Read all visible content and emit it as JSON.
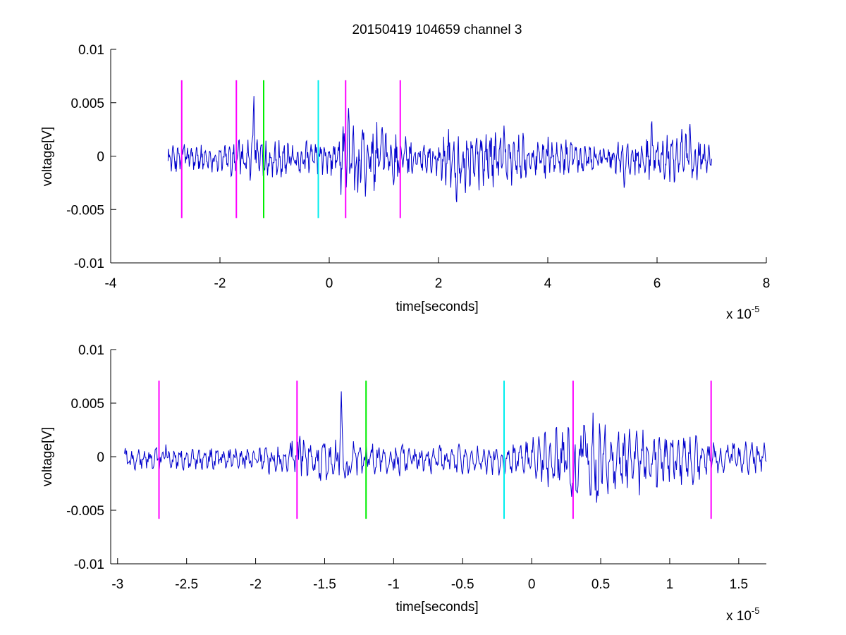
{
  "figure": {
    "title": "20150419 104659 channel 3"
  },
  "colors": {
    "signal": "#0000cc",
    "magenta": "#ff00ff",
    "green": "#00ee00",
    "cyan": "#00eeee",
    "axes": "#000000"
  },
  "chart_data": [
    {
      "type": "line",
      "title": "20150419 104659 channel 3",
      "xlabel": "time[seconds]",
      "ylabel": "voltage[V]",
      "x_multiplier": "x 10",
      "x_multiplier_exp": "-5",
      "xlim": [
        -4e-05,
        8e-05
      ],
      "ylim": [
        -0.01,
        0.01
      ],
      "xticks": [
        -4e-05,
        -2e-05,
        0,
        2e-05,
        4e-05,
        6e-05,
        8e-05
      ],
      "xtick_labels": [
        "-4",
        "-2",
        "0",
        "2",
        "4",
        "6",
        "8"
      ],
      "yticks": [
        0.01,
        0.005,
        0,
        -0.005,
        -0.01
      ],
      "ytick_labels": [
        "0.01",
        "0.005",
        "0",
        "-0.005",
        "-0.01"
      ],
      "grid": false,
      "series": [
        {
          "x_range": [
            -2.95e-05,
            7e-05
          ],
          "envelope": [
            [
              -2.95e-05,
              0.0012
            ],
            [
              -2e-05,
              0.0012
            ],
            [
              -1.5e-05,
              0.002
            ],
            [
              -1.2e-05,
              0.0018
            ],
            [
              -3e-06,
              0.0015
            ],
            [
              0.0,
              0.0015
            ],
            [
              2e-06,
              0.0032
            ],
            [
              4e-06,
              0.0038
            ],
            [
              1e-05,
              0.0028
            ],
            [
              1.3e-05,
              0.002
            ],
            [
              1.8e-05,
              0.0012
            ],
            [
              2.2e-05,
              0.0025
            ],
            [
              2.5e-05,
              0.003
            ],
            [
              3e-05,
              0.0025
            ],
            [
              4e-05,
              0.0018
            ],
            [
              5e-05,
              0.0012
            ],
            [
              5.8e-05,
              0.0018
            ],
            [
              6.5e-05,
              0.0025
            ],
            [
              7e-05,
              0.0012
            ]
          ],
          "spikes": [
            [
              -2.65e-05,
              0.0012
            ],
            [
              -1.65e-05,
              0.002
            ],
            [
              -1.38e-05,
              0.0064
            ],
            [
              3.5e-06,
              0.0046
            ],
            [
              5.2e-06,
              -0.004
            ],
            [
              2.33e-05,
              -0.0052
            ],
            [
              3.2e-05,
              0.003
            ],
            [
              5.9e-05,
              0.0037
            ],
            [
              6.6e-05,
              0.0033
            ],
            [
              5.4e-05,
              -0.0032
            ]
          ]
        }
      ],
      "markers": [
        {
          "x": -2.7e-05,
          "color": "magenta",
          "y": [
            -0.0058,
            0.0071
          ]
        },
        {
          "x": -1.7e-05,
          "color": "magenta",
          "y": [
            -0.0058,
            0.0071
          ]
        },
        {
          "x": -1.2e-05,
          "color": "green",
          "y": [
            -0.0058,
            0.0071
          ]
        },
        {
          "x": -2e-06,
          "color": "cyan",
          "y": [
            -0.0058,
            0.0071
          ]
        },
        {
          "x": 3e-06,
          "color": "magenta",
          "y": [
            -0.0058,
            0.0071
          ]
        },
        {
          "x": 1.3e-05,
          "color": "magenta",
          "y": [
            -0.0058,
            0.0071
          ]
        }
      ]
    },
    {
      "type": "line",
      "title": "",
      "xlabel": "time[seconds]",
      "ylabel": "voltage[V]",
      "x_multiplier": "x 10",
      "x_multiplier_exp": "-5",
      "xlim": [
        -3.05e-05,
        1.7e-05
      ],
      "ylim": [
        -0.01,
        0.01
      ],
      "xticks": [
        -3e-05,
        -2.5e-05,
        -2e-05,
        -1.5e-05,
        -1e-05,
        -5e-06,
        0,
        5e-06,
        1e-05,
        1.5e-05
      ],
      "xtick_labels": [
        "-3",
        "-2.5",
        "-2",
        "-1.5",
        "-1",
        "-0.5",
        "0",
        "0.5",
        "1",
        "1.5"
      ],
      "yticks": [
        0.01,
        0.005,
        0,
        -0.005,
        -0.01
      ],
      "ytick_labels": [
        "0.01",
        "0.005",
        "0",
        "-0.005",
        "-0.01"
      ],
      "grid": false,
      "series": [
        {
          "x_range": [
            -2.95e-05,
            1.7e-05
          ],
          "envelope": [
            [
              -2.95e-05,
              0.001
            ],
            [
              -2e-05,
              0.0011
            ],
            [
              -1.7e-05,
              0.0018
            ],
            [
              -1.5e-05,
              0.002
            ],
            [
              -1.2e-05,
              0.0016
            ],
            [
              -3e-06,
              0.0013
            ],
            [
              0.0,
              0.0018
            ],
            [
              2e-06,
              0.003
            ],
            [
              4e-06,
              0.004
            ],
            [
              7e-06,
              0.0032
            ],
            [
              1e-05,
              0.0026
            ],
            [
              1.3e-05,
              0.0018
            ],
            [
              1.7e-05,
              0.0014
            ]
          ],
          "spikes": [
            [
              -2.65e-05,
              0.0012
            ],
            [
              -1.68e-05,
              0.0022
            ],
            [
              -1.38e-05,
              0.0064
            ],
            [
              3.8e-06,
              0.0047
            ],
            [
              3e-06,
              -0.0035
            ],
            [
              4.8e-06,
              -0.004
            ],
            [
              -1.33e-05,
              -0.0025
            ]
          ]
        }
      ],
      "markers": [
        {
          "x": -2.7e-05,
          "color": "magenta",
          "y": [
            -0.0058,
            0.0071
          ]
        },
        {
          "x": -1.7e-05,
          "color": "magenta",
          "y": [
            -0.0058,
            0.0071
          ]
        },
        {
          "x": -1.2e-05,
          "color": "green",
          "y": [
            -0.0058,
            0.0071
          ]
        },
        {
          "x": -2e-06,
          "color": "cyan",
          "y": [
            -0.0058,
            0.0071
          ]
        },
        {
          "x": 3e-06,
          "color": "magenta",
          "y": [
            -0.0058,
            0.0071
          ]
        },
        {
          "x": 1.3e-05,
          "color": "magenta",
          "y": [
            -0.0058,
            0.0071
          ]
        }
      ]
    }
  ]
}
